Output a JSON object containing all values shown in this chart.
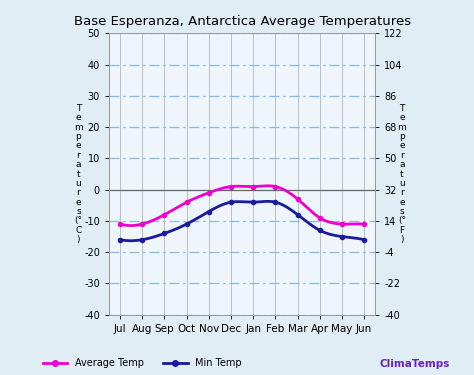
{
  "title": "Base Esperanza, Antarctica Average Temperatures",
  "months": [
    "Jul",
    "Aug",
    "Sep",
    "Oct",
    "Nov",
    "Dec",
    "Jan",
    "Feb",
    "Mar",
    "Apr",
    "May",
    "Jun"
  ],
  "avg_temp_c": [
    -11,
    -11,
    -8,
    -4,
    -1,
    1,
    1,
    1,
    -3,
    -9,
    -11,
    -11
  ],
  "min_temp_c": [
    -16,
    -16,
    -14,
    -11,
    -7,
    -4,
    -4,
    -4,
    -8,
    -13,
    -15,
    -16
  ],
  "ylim_c": [
    -40,
    50
  ],
  "ylim_f": [
    -40,
    122
  ],
  "yticks_c": [
    -40,
    -30,
    -20,
    -10,
    0,
    10,
    20,
    30,
    40,
    50
  ],
  "yticks_f": [
    -40,
    -22,
    -4,
    14,
    32,
    50,
    68,
    86,
    104,
    122
  ],
  "avg_color": "#ee00cc",
  "min_color": "#1a1a9a",
  "grid_dash_color": "#88bbdd",
  "grid_solid_color": "#888888",
  "bg_color": "#e0edf5",
  "plot_bg": "#eef5fb",
  "title_fontsize": 9.5,
  "legend_avg": "Average Temp",
  "legend_min": "Min Temp",
  "watermark": "ClimaTemps",
  "watermark_color": "#6622bb"
}
